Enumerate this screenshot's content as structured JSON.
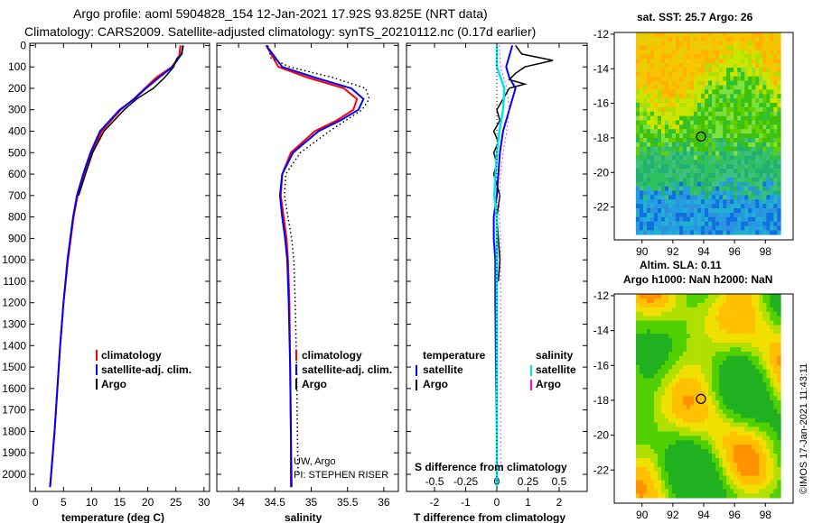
{
  "header": {
    "line1": "Argo profile: aoml 5904828_154 12-Jan-2021 17.92S 93.825E (NRT data)",
    "line2": "Climatology: CARS2009. Satellite-adjusted climatology: synTS_20210112.nc (0.17d earlier)"
  },
  "colors": {
    "climatology": "#ff0000",
    "satellite": "#0000ff",
    "argo": "#000000",
    "sat_salinity": "#00e5ee",
    "argo_salinity": "#ff00ff"
  },
  "depth_ticks": [
    "0",
    "100",
    "200",
    "300",
    "400",
    "500",
    "600",
    "700",
    "800",
    "900",
    "1000",
    "1100",
    "1200",
    "1300",
    "1400",
    "1500",
    "1600",
    "1700",
    "1800",
    "1900",
    "2000"
  ],
  "chart_data": [
    {
      "type": "line",
      "name": "temperature",
      "xlabel": "temperature (deg C)",
      "xlim": [
        -1,
        31
      ],
      "ylim": [
        2080,
        -10
      ],
      "xticks": [
        "0",
        "5",
        "10",
        "15",
        "20",
        "25",
        "30"
      ],
      "legend": [
        "climatology",
        "satellite-adj. clim.",
        "Argo"
      ],
      "series": [
        {
          "name": "climatology",
          "depth": [
            0,
            50,
            100,
            150,
            200,
            250,
            300,
            400,
            500,
            600,
            700,
            800,
            1000,
            1200,
            1400,
            1600,
            1800,
            2000,
            2060
          ],
          "values": [
            25.8,
            25.6,
            24.3,
            21.5,
            19.5,
            17.5,
            15.2,
            11.8,
            10.0,
            8.6,
            7.5,
            6.8,
            5.8,
            5.0,
            4.4,
            3.9,
            3.4,
            2.8,
            2.6
          ]
        },
        {
          "name": "satellite-adj. clim.",
          "depth": [
            0,
            40,
            100,
            150,
            200,
            250,
            300,
            400,
            500,
            600,
            700,
            800,
            1000,
            1200,
            1400,
            1600,
            1800,
            2000,
            2060
          ],
          "values": [
            26.3,
            26.0,
            24.4,
            22.0,
            19.7,
            17.6,
            15.0,
            11.5,
            9.8,
            8.5,
            7.4,
            6.7,
            5.7,
            5.0,
            4.4,
            3.9,
            3.4,
            2.8,
            2.6
          ]
        },
        {
          "name": "Argo",
          "depth": [
            0,
            40,
            60,
            100,
            150,
            200,
            250,
            300,
            350,
            400,
            500,
            600,
            700
          ],
          "values": [
            26.2,
            26.1,
            25.2,
            24.6,
            23.0,
            21.0,
            18.0,
            15.8,
            14.0,
            12.2,
            10.2,
            8.9,
            7.7
          ]
        }
      ]
    },
    {
      "type": "line",
      "name": "salinity",
      "xlabel": "salinity",
      "xlim": [
        33.7,
        36.2
      ],
      "ylim": [
        2080,
        -10
      ],
      "xticks": [
        "34",
        "34.5",
        "35",
        "35.5",
        "36"
      ],
      "legend": [
        "climatology",
        "satellite-adj. clim.",
        "Argo"
      ],
      "annotations": [
        "UW, Argo",
        "PI: STEPHEN RISER"
      ],
      "series": [
        {
          "name": "climatology",
          "depth": [
            0,
            100,
            150,
            200,
            250,
            300,
            350,
            400,
            500,
            600,
            700,
            800,
            900,
            1000,
            1200,
            1500,
            1800,
            2060
          ],
          "values": [
            34.38,
            34.55,
            34.95,
            35.45,
            35.63,
            35.58,
            35.35,
            35.05,
            34.72,
            34.6,
            34.58,
            34.62,
            34.66,
            34.68,
            34.7,
            34.71,
            34.72,
            34.72
          ]
        },
        {
          "name": "satellite-adj. clim.",
          "depth": [
            0,
            100,
            150,
            200,
            250,
            300,
            350,
            400,
            500,
            600,
            700,
            800,
            900,
            1000,
            1200,
            1500,
            1800,
            2060
          ],
          "values": [
            34.38,
            34.6,
            35.05,
            35.55,
            35.72,
            35.65,
            35.4,
            35.1,
            34.75,
            34.6,
            34.57,
            34.6,
            34.64,
            34.67,
            34.69,
            34.71,
            34.72,
            34.73
          ]
        },
        {
          "name": "Argo",
          "depth": [
            0,
            60,
            100,
            150,
            200,
            250,
            300,
            400,
            500,
            600,
            700,
            800,
            900,
            1000,
            1200,
            1500,
            1800,
            2000
          ],
          "values": [
            34.4,
            34.45,
            34.7,
            35.3,
            35.75,
            35.8,
            35.7,
            35.25,
            34.85,
            34.65,
            34.63,
            34.68,
            34.73,
            34.76,
            34.78,
            34.8,
            34.81,
            34.82
          ]
        }
      ]
    },
    {
      "type": "line",
      "name": "difference",
      "xlabel": "T difference from climatology",
      "xlim": [
        -2.9,
        2.9
      ],
      "ylim": [
        2080,
        -10
      ],
      "xticks": [
        "-2",
        "-1",
        "0",
        "1",
        "2"
      ],
      "s_xticks": [
        "-0.5",
        "-0.25",
        "0",
        "0.25",
        "0.5"
      ],
      "s_label": "S difference from climatology",
      "legend_headers": [
        "temperature",
        "salinity"
      ],
      "legend": [
        "satellite",
        "Argo",
        "satellite",
        "Argo"
      ],
      "series": [
        {
          "name": "T satellite",
          "depth": [
            0,
            100,
            150,
            200,
            300,
            400,
            500,
            600,
            700,
            800,
            900,
            1000,
            1200,
            1500,
            1800,
            2060
          ],
          "values": [
            0.5,
            0.3,
            0.4,
            0.6,
            0.4,
            0.2,
            0.1,
            0.05,
            0.0,
            -0.1,
            -0.1,
            -0.05,
            -0.05,
            -0.03,
            0.0,
            0.0
          ]
        },
        {
          "name": "T Argo",
          "depth": [
            0,
            40,
            70,
            100,
            130,
            160,
            180,
            200,
            250,
            300,
            350,
            400,
            450,
            500,
            550,
            600,
            650,
            700,
            800,
            900,
            1000,
            1100
          ],
          "values": [
            0.6,
            0.8,
            1.8,
            0.9,
            0.6,
            0.4,
            0.9,
            0.4,
            0.2,
            0.0,
            0.1,
            -0.1,
            0.05,
            -0.1,
            0.0,
            -0.1,
            0.0,
            0.1,
            0.0,
            0.05,
            0.1,
            0.05
          ]
        },
        {
          "name": "S satellite",
          "depth": [
            0,
            100,
            200,
            300,
            400,
            500,
            600,
            700,
            800,
            900,
            1000,
            1200,
            1500,
            1800,
            2060
          ],
          "values": [
            0.0,
            0.0,
            0.06,
            0.05,
            0.02,
            0.0,
            -0.01,
            -0.02,
            0.0,
            0.0,
            0.0,
            0.0,
            0.0,
            0.0,
            0.0
          ]
        },
        {
          "name": "S Argo",
          "depth": [
            0,
            100,
            200,
            300,
            400,
            500,
            600,
            700,
            800,
            900,
            1000,
            1200,
            1500,
            1800,
            2000
          ],
          "values": [
            0.02,
            0.03,
            0.08,
            0.1,
            0.08,
            0.05,
            0.03,
            0.02,
            0.02,
            0.03,
            0.03,
            0.03,
            0.03,
            0.03,
            0.03
          ]
        }
      ]
    },
    {
      "type": "heatmap",
      "name": "sst-map",
      "title": "sat. SST: 25.7 Argo: 26",
      "xticks": [
        "90",
        "92",
        "94",
        "96",
        "98"
      ],
      "yticks": [
        "-12",
        "-14",
        "-16",
        "-18",
        "-20",
        "-22"
      ],
      "xlim": [
        88.2,
        99.8
      ],
      "ylim": [
        -23.9,
        -11.9
      ],
      "argo_location": {
        "lon": 93.825,
        "lat": -17.92
      }
    },
    {
      "type": "heatmap",
      "name": "sla-map",
      "title1": "Altim. SLA: 0.11",
      "title2": "Argo h1000: NaN h2000: NaN",
      "xticks": [
        "90",
        "92",
        "94",
        "96",
        "98"
      ],
      "yticks": [
        "-12",
        "-14",
        "-16",
        "-18",
        "-20",
        "-22"
      ],
      "xlim": [
        88.2,
        99.8
      ],
      "ylim": [
        -23.9,
        -11.9
      ],
      "argo_location": {
        "lon": 93.825,
        "lat": -17.92
      }
    }
  ],
  "credit": "©IMOS 17-Jan-2021 11:43:11"
}
